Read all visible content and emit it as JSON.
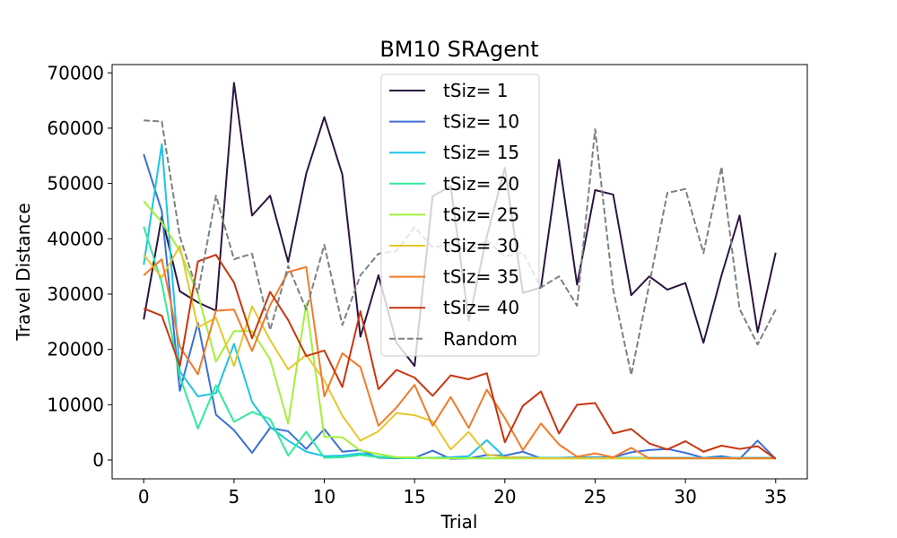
{
  "chart_data": {
    "type": "line",
    "title": "BM10  SRAgent",
    "xlabel": "Trial",
    "ylabel": "Travel Distance",
    "xlim": [
      -1.75,
      36.75
    ],
    "ylim": [
      -3400,
      71500
    ],
    "xticks": [
      0,
      5,
      10,
      15,
      20,
      25,
      30,
      35
    ],
    "yticks": [
      0,
      10000,
      20000,
      30000,
      40000,
      50000,
      60000,
      70000
    ],
    "grid": false,
    "legend_position": "top-center",
    "series": [
      {
        "name": "tSiz= 1",
        "color": "#2d1441",
        "dashed": false,
        "values": [
          25400,
          44000,
          30500,
          28500,
          27000,
          68200,
          44200,
          47800,
          35800,
          51800,
          62000,
          51600,
          22300,
          33400,
          21200,
          17000,
          47700,
          49500,
          25200,
          40400,
          52800,
          30200,
          31200,
          54300,
          31700,
          48800,
          48000,
          29800,
          33200,
          30800,
          32000,
          21200,
          33400,
          44200,
          23100,
          37500
        ]
      },
      {
        "name": "tSiz= 10",
        "color": "#3b6fd8",
        "dashed": false,
        "values": [
          55300,
          45000,
          12500,
          24800,
          8200,
          5400,
          1300,
          5800,
          5200,
          2000,
          5600,
          1500,
          1800,
          400,
          300,
          400,
          1700,
          200,
          300,
          900,
          800,
          1500,
          300,
          400,
          500,
          500,
          500,
          1400,
          1800,
          2000,
          1300,
          400,
          700,
          200,
          3500,
          200
        ]
      },
      {
        "name": "tSiz= 15",
        "color": "#1ec3e6",
        "dashed": false,
        "values": [
          35300,
          57100,
          16000,
          11500,
          12100,
          21000,
          10500,
          6000,
          3500,
          1500,
          700,
          800,
          1200,
          600,
          500,
          400,
          400,
          500,
          700,
          3600,
          500,
          500,
          400,
          400,
          400,
          400,
          400,
          400,
          400,
          400,
          400,
          400,
          400,
          400,
          400,
          400
        ]
      },
      {
        "name": "tSiz= 20",
        "color": "#30eb9a",
        "dashed": false,
        "values": [
          42200,
          32000,
          15100,
          5700,
          13500,
          6900,
          8700,
          7400,
          800,
          5100,
          400,
          500,
          900,
          500,
          400,
          300,
          400,
          300,
          300,
          300,
          300,
          300,
          300,
          300,
          300,
          300,
          300,
          300,
          300,
          300,
          300,
          300,
          300,
          300,
          300,
          300
        ]
      },
      {
        "name": "tSiz= 25",
        "color": "#a3f03a",
        "dashed": false,
        "values": [
          46800,
          43000,
          37800,
          30000,
          17800,
          23300,
          23300,
          18200,
          6600,
          28300,
          4200,
          4100,
          1700,
          1100,
          500,
          500,
          300,
          300,
          300,
          300,
          300,
          300,
          300,
          300,
          300,
          300,
          300,
          300,
          300,
          300,
          300,
          300,
          300,
          300,
          300,
          300
        ]
      },
      {
        "name": "tSiz= 30",
        "color": "#e8c62c",
        "dashed": false,
        "values": [
          37100,
          33000,
          38700,
          24000,
          25700,
          17000,
          27800,
          21700,
          16400,
          19000,
          14400,
          8000,
          3500,
          5200,
          8500,
          8100,
          7000,
          1900,
          5100,
          1000,
          500,
          400,
          300,
          300,
          300,
          300,
          300,
          300,
          300,
          300,
          300,
          300,
          300,
          300,
          300,
          300
        ]
      },
      {
        "name": "tSiz= 35",
        "color": "#f27a2a",
        "dashed": false,
        "values": [
          33400,
          36300,
          20500,
          15500,
          27000,
          27200,
          19700,
          28000,
          34000,
          34900,
          11500,
          19300,
          16800,
          6200,
          9500,
          13600,
          6200,
          11400,
          5800,
          12700,
          7600,
          1800,
          6600,
          2800,
          600,
          1200,
          500,
          2200,
          300,
          300,
          300,
          300,
          300,
          300,
          300,
          300
        ]
      },
      {
        "name": "tSiz= 40",
        "color": "#c9350f",
        "dashed": false,
        "values": [
          27400,
          26100,
          17000,
          35900,
          37100,
          32100,
          22000,
          30400,
          25300,
          18800,
          19800,
          13200,
          26900,
          12800,
          16300,
          14900,
          11600,
          15300,
          14600,
          15700,
          3200,
          9800,
          12400,
          4800,
          10000,
          10300,
          4800,
          5600,
          3000,
          1900,
          3400,
          1500,
          2600,
          2000,
          2500,
          200
        ]
      },
      {
        "name": "Random",
        "color": "#808080",
        "dashed": true,
        "values": [
          61400,
          61200,
          40400,
          30200,
          47800,
          36300,
          37300,
          23500,
          35100,
          27200,
          38900,
          24400,
          33400,
          37300,
          37800,
          42100,
          38500,
          38900,
          37900,
          39700,
          36800,
          37500,
          31200,
          33200,
          27900,
          59800,
          30800,
          15400,
          31800,
          48300,
          49000,
          37400,
          53000,
          27300,
          20900,
          27200
        ]
      }
    ]
  }
}
